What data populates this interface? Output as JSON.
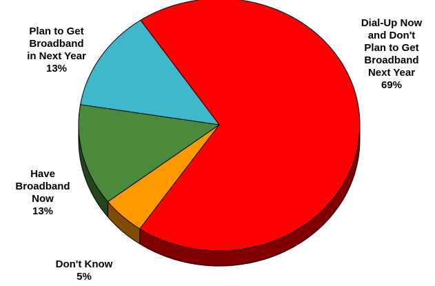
{
  "chart_data": {
    "type": "pie",
    "style": "3d",
    "title": "",
    "slices": [
      {
        "label_lines": [
          "Dial-Up Now",
          "and Don't",
          "Plan to Get",
          "Broadband",
          "Next Year",
          "69%"
        ],
        "value": 69,
        "color": "#ff0000"
      },
      {
        "label_lines": [
          "Don't Know",
          "5%"
        ],
        "value": 5,
        "color": "#ff9900"
      },
      {
        "label_lines": [
          "Have",
          "Broadband",
          "Now",
          "13%"
        ],
        "value": 13,
        "color": "#4a8a3a"
      },
      {
        "label_lines": [
          "Plan to Get",
          "Broadband",
          "in Next Year",
          "13%"
        ],
        "value": 13,
        "color": "#40b8cc"
      }
    ]
  }
}
